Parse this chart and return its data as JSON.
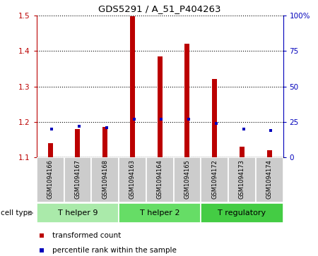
{
  "title": "GDS5291 / A_51_P404263",
  "samples": [
    "GSM1094166",
    "GSM1094167",
    "GSM1094168",
    "GSM1094163",
    "GSM1094164",
    "GSM1094165",
    "GSM1094172",
    "GSM1094173",
    "GSM1094174"
  ],
  "red_values": [
    1.14,
    1.18,
    1.185,
    1.498,
    1.385,
    1.42,
    1.32,
    1.13,
    1.12
  ],
  "blue_values_pct": [
    20,
    22,
    21,
    27,
    27,
    27,
    24,
    20,
    19
  ],
  "ylim_left": [
    1.1,
    1.5
  ],
  "ylim_right": [
    0,
    100
  ],
  "yticks_left": [
    1.1,
    1.2,
    1.3,
    1.4,
    1.5
  ],
  "yticks_right": [
    0,
    25,
    50,
    75,
    100
  ],
  "ytick_labels_right": [
    "0",
    "25",
    "50",
    "75",
    "100%"
  ],
  "groups": [
    {
      "label": "T helper 9",
      "indices": [
        0,
        1,
        2
      ],
      "color": "#aaeaaa"
    },
    {
      "label": "T helper 2",
      "indices": [
        3,
        4,
        5
      ],
      "color": "#66dd66"
    },
    {
      "label": "T regulatory",
      "indices": [
        6,
        7,
        8
      ],
      "color": "#44cc44"
    }
  ],
  "bar_width": 0.18,
  "red_color": "#bb0000",
  "blue_color": "#0000bb",
  "sample_bg": "#cccccc",
  "legend_red": "transformed count",
  "legend_blue": "percentile rank within the sample",
  "cell_type_label": "cell type"
}
